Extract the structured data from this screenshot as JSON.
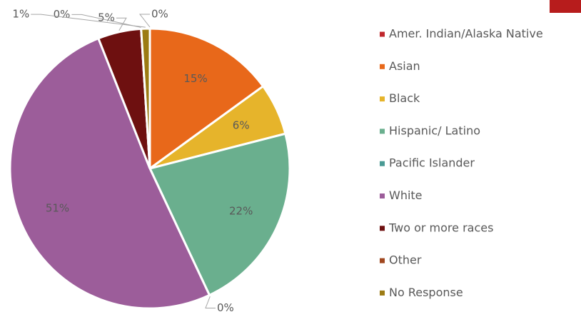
{
  "chart_data": {
    "type": "pie",
    "categories": [
      "Amer. Indian/Alaska Native",
      "Asian",
      "Black",
      "Hispanic/ Latino",
      "Pacific Islander",
      "White",
      "Two or more races",
      "Other",
      "No Response"
    ],
    "values": [
      0,
      15,
      6,
      22,
      0,
      51,
      5,
      0,
      1
    ],
    "value_labels": [
      "0%",
      "15%",
      "6%",
      "22%",
      "0%",
      "51%",
      "5%",
      "0%",
      "1%"
    ],
    "colors": [
      "#c0282d",
      "#e8681a",
      "#e6b42b",
      "#6aaf8e",
      "#4a9a94",
      "#9c5d9a",
      "#6e1010",
      "#a0471f",
      "#9c7b14"
    ]
  }
}
